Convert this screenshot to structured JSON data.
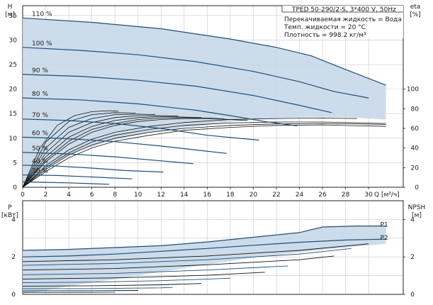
{
  "chart_data": [
    {
      "type": "line",
      "title": "TPED 50-290/2-S, 3*400 V, 50Hz",
      "annotations": [
        "Перекачиваемая жидкость = Вода",
        "Темп. жидкости = 20 °C",
        "Плотность = 998.2 кг/м³"
      ],
      "xlabel": "Q [м³/ч]",
      "ylabel": "H",
      "ylabel_unit": "[м]",
      "y2label": "eta",
      "y2label_unit": "[%]",
      "x_ticks": [
        "0",
        "2",
        "4",
        "6",
        "8",
        "10",
        "12",
        "14",
        "16",
        "18",
        "20",
        "22",
        "24",
        "26",
        "28",
        "30"
      ],
      "y_ticks": [
        "0",
        "5",
        "10",
        "15",
        "20",
        "25",
        "30",
        "35"
      ],
      "y2_ticks": [
        "0",
        "20",
        "40",
        "60",
        "80",
        "100"
      ],
      "xlim": [
        0,
        33
      ],
      "ylim": [
        0,
        37
      ],
      "y2lim": [
        0,
        185
      ],
      "grid": true,
      "envelope": {
        "x": [
          0,
          6,
          12,
          18,
          22,
          25,
          28,
          31.5,
          31.5,
          28,
          25,
          22,
          18,
          14,
          11,
          9,
          7,
          5,
          3,
          1.5,
          0
        ],
        "y": [
          34.5,
          33.6,
          32.3,
          30.2,
          28.5,
          26.8,
          24.0,
          20.8,
          13.8,
          14.3,
          14.3,
          14.1,
          13.3,
          12.1,
          11.1,
          10.2,
          9.0,
          7.5,
          5.2,
          2.8,
          0
        ]
      },
      "series": [
        {
          "name": "110 %",
          "x": [
            0,
            6,
            12,
            18,
            22,
            25,
            28,
            31.5
          ],
          "y": [
            34.5,
            33.6,
            32.3,
            30.2,
            28.5,
            26.8,
            24.0,
            20.8
          ]
        },
        {
          "name": "100 %",
          "x": [
            0,
            5,
            10,
            15,
            20,
            24,
            27,
            30
          ],
          "y": [
            28.5,
            27.9,
            27.0,
            25.6,
            23.6,
            21.5,
            19.5,
            18.2
          ]
        },
        {
          "name": "90 %",
          "x": [
            0,
            5,
            10,
            15,
            20,
            24,
            26.8
          ],
          "y": [
            23.0,
            22.6,
            21.8,
            20.6,
            18.7,
            16.7,
            15.2
          ]
        },
        {
          "name": "80 %",
          "x": [
            0,
            5,
            10,
            15,
            18,
            21,
            23.8
          ],
          "y": [
            18.2,
            17.8,
            17.0,
            15.7,
            14.6,
            13.4,
            12.5
          ]
        },
        {
          "name": "70 %",
          "x": [
            0,
            4,
            8,
            12,
            16,
            20.5
          ],
          "y": [
            13.9,
            13.6,
            13.0,
            12.0,
            10.6,
            9.6
          ]
        },
        {
          "name": "60 %",
          "x": [
            0,
            4,
            8,
            12,
            15,
            17.7
          ],
          "y": [
            10.2,
            9.9,
            9.3,
            8.4,
            7.6,
            6.9
          ]
        },
        {
          "name": "50 %",
          "x": [
            0,
            4,
            8,
            11,
            14.8
          ],
          "y": [
            7.1,
            6.8,
            6.2,
            5.6,
            4.8
          ]
        },
        {
          "name": "40 %",
          "x": [
            0,
            3,
            6,
            9,
            12.2
          ],
          "y": [
            4.5,
            4.3,
            3.9,
            3.4,
            3.1
          ]
        },
        {
          "name": "30 %",
          "x": [
            0,
            3,
            6,
            9.5
          ],
          "y": [
            2.5,
            2.4,
            2.1,
            1.7
          ]
        },
        {
          "name": "",
          "x": [
            0,
            2,
            4,
            7.5
          ],
          "y": [
            1.1,
            1.0,
            0.9,
            0.6
          ]
        }
      ],
      "efficiency_curves": [
        {
          "x": [
            0,
            2,
            4,
            6,
            8,
            11,
            14,
            18,
            22,
            26,
            31.5
          ],
          "y": [
            0,
            18,
            33,
            43,
            50,
            56,
            60,
            63,
            64.5,
            65,
            64
          ]
        },
        {
          "x": [
            0,
            2,
            4,
            6,
            8,
            11,
            14,
            18,
            22,
            26,
            31.5
          ],
          "y": [
            0,
            20,
            35,
            46,
            53,
            59,
            63,
            65.5,
            66.5,
            66.5,
            65
          ]
        },
        {
          "x": [
            0,
            2,
            4,
            6,
            8,
            11,
            14,
            18,
            22,
            26,
            31.5
          ],
          "y": [
            0,
            16,
            30,
            40,
            47,
            53,
            58,
            61,
            63,
            63.5,
            62
          ]
        },
        {
          "x": [
            0,
            2,
            4,
            6,
            8,
            11,
            14,
            18,
            22,
            26,
            29
          ],
          "y": [
            0,
            22,
            38,
            49,
            56,
            62,
            66,
            69,
            70,
            70.5,
            70
          ]
        },
        {
          "x": [
            0,
            2,
            4,
            6,
            8,
            10,
            12,
            14,
            16,
            18,
            19.5
          ],
          "y": [
            0,
            26,
            44,
            56,
            63,
            67,
            69,
            70,
            70,
            69,
            68
          ]
        },
        {
          "x": [
            0,
            2,
            4,
            6,
            8,
            10,
            12,
            14,
            16,
            17.5
          ],
          "y": [
            0,
            28,
            47,
            59,
            65,
            69,
            70.5,
            71,
            70.5,
            69.5
          ]
        },
        {
          "x": [
            0,
            2,
            4,
            6,
            8,
            10,
            12,
            14,
            15.5
          ],
          "y": [
            0,
            31,
            51,
            62,
            68,
            71,
            72,
            71.5,
            71
          ]
        },
        {
          "x": [
            0,
            2,
            4,
            6,
            8,
            10,
            12,
            13.5
          ],
          "y": [
            0,
            35,
            56,
            66,
            71,
            73,
            73,
            72.5
          ]
        },
        {
          "x": [
            0,
            2,
            4,
            6,
            8,
            10,
            11.5
          ],
          "y": [
            0,
            40,
            61,
            70,
            74,
            74.5,
            74
          ]
        },
        {
          "x": [
            0,
            2,
            4,
            6,
            8,
            9.8
          ],
          "y": [
            0,
            46,
            67,
            74,
            76,
            75.5
          ]
        },
        {
          "x": [
            0,
            1.5,
            3,
            4.5,
            6,
            7.5,
            8.3
          ],
          "y": [
            0,
            40,
            63,
            73,
            77,
            78,
            77.5
          ]
        }
      ]
    },
    {
      "type": "line",
      "ylabel": "P",
      "ylabel_unit": "[кВт]",
      "y2label": "NPSH",
      "y2label_unit": "[м]",
      "y_ticks": [
        "0",
        "2",
        "4"
      ],
      "y2_ticks": [
        "0",
        "2",
        "4"
      ],
      "xlim": [
        0,
        33
      ],
      "ylim": [
        0,
        5.0
      ],
      "grid": true,
      "envelope": {
        "x": [
          0,
          4,
          8,
          12,
          16,
          20,
          24,
          26,
          29,
          31.5,
          31.5,
          28,
          24,
          20,
          16,
          12,
          8,
          4,
          1.5,
          0
        ],
        "y": [
          2.35,
          2.4,
          2.5,
          2.6,
          2.8,
          3.05,
          3.3,
          3.6,
          3.65,
          3.65,
          2.7,
          2.5,
          2.25,
          1.95,
          1.6,
          1.2,
          0.8,
          0.45,
          0.15,
          0.05
        ]
      },
      "series": [
        {
          "name": "P1",
          "x": [
            0,
            4,
            8,
            12,
            16,
            20,
            24,
            26,
            29,
            31.5
          ],
          "y": [
            2.35,
            2.4,
            2.5,
            2.6,
            2.8,
            3.05,
            3.3,
            3.6,
            3.65,
            3.65
          ]
        },
        {
          "name": "P2",
          "x": [
            0,
            4,
            8,
            12,
            16,
            20,
            24,
            28,
            31.5
          ],
          "y": [
            2.0,
            2.05,
            2.15,
            2.3,
            2.45,
            2.62,
            2.78,
            2.9,
            2.95
          ]
        }
      ],
      "curves": [
        {
          "x": [
            0,
            8,
            16,
            24,
            30
          ],
          "y": [
            1.75,
            1.85,
            2.05,
            2.35,
            2.7
          ]
        },
        {
          "x": [
            0,
            8,
            16,
            24,
            28.5
          ],
          "y": [
            1.55,
            1.65,
            1.85,
            2.15,
            2.45
          ]
        },
        {
          "x": [
            0,
            8,
            16,
            24,
            27
          ],
          "y": [
            1.3,
            1.38,
            1.58,
            1.85,
            2.05
          ]
        },
        {
          "x": [
            0,
            8,
            16,
            23
          ],
          "y": [
            1.05,
            1.12,
            1.3,
            1.52
          ]
        },
        {
          "x": [
            0,
            8,
            16,
            21
          ],
          "y": [
            0.82,
            0.88,
            1.02,
            1.18
          ]
        },
        {
          "x": [
            0,
            6,
            12,
            18
          ],
          "y": [
            0.62,
            0.65,
            0.73,
            0.86
          ]
        },
        {
          "x": [
            0,
            6,
            12,
            15.5
          ],
          "y": [
            0.44,
            0.46,
            0.51,
            0.58
          ]
        },
        {
          "x": [
            0,
            6,
            12,
            13
          ],
          "y": [
            0.3,
            0.31,
            0.35,
            0.37
          ]
        },
        {
          "x": [
            0,
            5,
            10
          ],
          "y": [
            0.18,
            0.19,
            0.21
          ]
        },
        {
          "x": [
            0,
            4,
            8
          ],
          "y": [
            0.09,
            0.1,
            0.11
          ]
        }
      ]
    }
  ]
}
